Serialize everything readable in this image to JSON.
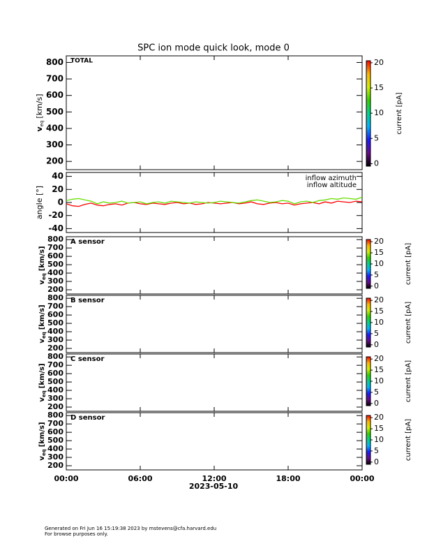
{
  "chart_data": [
    {
      "type": "spectrogram",
      "title": "SPC ion mode quick look, mode 0",
      "label": "TOTAL",
      "ylabel": {
        "main": "v",
        "sub": "eq",
        "unit": "[km/s]"
      },
      "ylim": [
        150,
        840
      ],
      "yticks": [
        200,
        300,
        400,
        500,
        600,
        700,
        800
      ],
      "xlim": [
        0,
        24
      ],
      "colorbar": {
        "label": "current [pA]",
        "clim": [
          -0.5,
          20.4
        ],
        "ticks": [
          0,
          5,
          10,
          15,
          20
        ],
        "colors": [
          "#000000",
          "#6a0a8a",
          "#1a1aff",
          "#00b4ff",
          "#00d28c",
          "#32d200",
          "#d2f000",
          "#ffb400",
          "#ff0000"
        ]
      }
    },
    {
      "type": "line",
      "ylabel": "angle [°]",
      "ylim": [
        -46,
        46
      ],
      "yticks": [
        -40,
        -20,
        0,
        20,
        40
      ],
      "xlim": [
        0,
        24
      ],
      "x": [
        0,
        0.5,
        1,
        1.5,
        2,
        2.5,
        3,
        3.5,
        4,
        4.5,
        5,
        5.5,
        6,
        6.5,
        7,
        7.5,
        8,
        8.5,
        9,
        9.5,
        10,
        10.5,
        11,
        11.5,
        12,
        12.5,
        13,
        13.5,
        14,
        14.5,
        15,
        15.5,
        16,
        16.5,
        17,
        17.5,
        18,
        18.5,
        19,
        19.5,
        20,
        20.5,
        21,
        21.5,
        22,
        22.5,
        23,
        23.5,
        24
      ],
      "series": [
        {
          "name": "inflow azimuth",
          "color": "#ff0000",
          "values": [
            -2,
            -5,
            -6,
            -3,
            -1,
            -4,
            -5,
            -3,
            -2,
            -4,
            -1,
            0,
            -2,
            -3,
            -1,
            -2,
            -3,
            -1,
            0,
            -2,
            -1,
            -3,
            -2,
            0,
            -1,
            -2,
            -1,
            0,
            -2,
            -1,
            1,
            -2,
            -3,
            -1,
            0,
            -2,
            -1,
            -4,
            -2,
            -1,
            0,
            -2,
            1,
            -1,
            2,
            1,
            0,
            2,
            1
          ]
        },
        {
          "name": "inflow altitude",
          "color": "#66dd00",
          "values": [
            3,
            5,
            6,
            4,
            2,
            -2,
            1,
            -1,
            0,
            2,
            -1,
            0,
            1,
            -2,
            0,
            1,
            -1,
            2,
            1,
            0,
            -1,
            1,
            0,
            -1,
            0,
            2,
            1,
            0,
            -1,
            1,
            3,
            4,
            2,
            0,
            1,
            3,
            2,
            -2,
            1,
            2,
            0,
            3,
            4,
            6,
            5,
            7,
            6,
            5,
            8
          ]
        }
      ]
    },
    {
      "type": "spectrogram",
      "label": "A sensor",
      "ylabel": {
        "main": "v",
        "sub": "eq",
        "unit": "[km/s]"
      },
      "ylim": [
        150,
        835
      ],
      "yticks": [
        200,
        300,
        400,
        500,
        600,
        700,
        800
      ],
      "xlim": [
        0,
        24
      ],
      "colorbar": {
        "label": "current [pA]",
        "clim": [
          -1,
          21
        ],
        "ticks": [
          0,
          5,
          10,
          15,
          20
        ],
        "colors": [
          "#000000",
          "#6a0a8a",
          "#1a1aff",
          "#00b4ff",
          "#00d28c",
          "#32d200",
          "#d2f000",
          "#ffb400",
          "#ff0000"
        ]
      }
    },
    {
      "type": "spectrogram",
      "label": "B sensor",
      "ylabel": {
        "main": "v",
        "sub": "eq",
        "unit": "[km/s]"
      },
      "ylim": [
        150,
        835
      ],
      "yticks": [
        200,
        300,
        400,
        500,
        600,
        700,
        800
      ],
      "xlim": [
        0,
        24
      ],
      "colorbar": {
        "label": "current [pA]",
        "clim": [
          -1,
          21
        ],
        "ticks": [
          0,
          5,
          10,
          15,
          20
        ],
        "colors": [
          "#000000",
          "#6a0a8a",
          "#1a1aff",
          "#00b4ff",
          "#00d28c",
          "#32d200",
          "#d2f000",
          "#ffb400",
          "#ff0000"
        ]
      }
    },
    {
      "type": "spectrogram",
      "label": "C sensor",
      "ylabel": {
        "main": "v",
        "sub": "eq",
        "unit": "[km/s]"
      },
      "ylim": [
        150,
        835
      ],
      "yticks": [
        200,
        300,
        400,
        500,
        600,
        700,
        800
      ],
      "xlim": [
        0,
        24
      ],
      "colorbar": {
        "label": "current [pA]",
        "clim": [
          -1,
          21
        ],
        "ticks": [
          0,
          5,
          10,
          15,
          20
        ],
        "colors": [
          "#000000",
          "#6a0a8a",
          "#1a1aff",
          "#00b4ff",
          "#00d28c",
          "#32d200",
          "#d2f000",
          "#ffb400",
          "#ff0000"
        ]
      }
    },
    {
      "type": "spectrogram",
      "label": "D sensor",
      "ylabel": {
        "main": "v",
        "sub": "eq",
        "unit": "[km/s]"
      },
      "ylim": [
        150,
        835
      ],
      "yticks": [
        200,
        300,
        400,
        500,
        600,
        700,
        800
      ],
      "xlim": [
        0,
        24
      ],
      "xticks": [
        {
          "value": 0,
          "label": "00:00"
        },
        {
          "value": 6,
          "label": "06:00"
        },
        {
          "value": 12,
          "label": "12:00"
        },
        {
          "value": 18,
          "label": "18:00"
        },
        {
          "value": 24,
          "label": "00:00"
        }
      ],
      "xlabel": "2023-05-10",
      "colorbar": {
        "label": "current [pA]",
        "clim": [
          -1,
          21
        ],
        "ticks": [
          0,
          5,
          10,
          15,
          20
        ],
        "colors": [
          "#000000",
          "#6a0a8a",
          "#1a1aff",
          "#00b4ff",
          "#00d28c",
          "#32d200",
          "#d2f000",
          "#ffb400",
          "#ff0000"
        ]
      }
    }
  ],
  "footer": [
    "Generated on Fri Jun 16 15:19:38 2023 by mstevens@cfa.harvard.edu",
    "For browse purposes only."
  ]
}
